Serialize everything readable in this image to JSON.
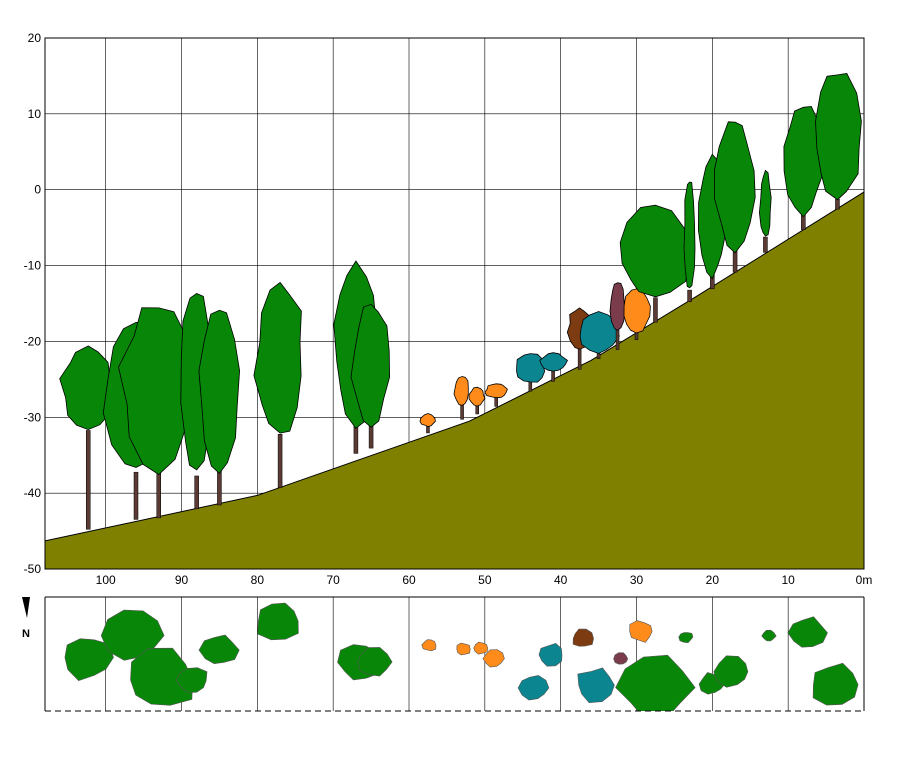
{
  "chart_data": {
    "type": "profile",
    "x_axis": {
      "ticks": [
        "100",
        "90",
        "80",
        "70",
        "60",
        "50",
        "40",
        "30",
        "20",
        "10",
        "0m"
      ],
      "range": [
        108,
        0
      ]
    },
    "y_axis": {
      "ticks": [
        "20",
        "10",
        "0",
        "-10",
        "-20",
        "-30",
        "-40",
        "-50"
      ],
      "range": [
        -50,
        20
      ]
    },
    "grid": true,
    "north_label": "N",
    "colors": {
      "terrain": "#808000",
      "green": "#078607",
      "teal": "#0B8590",
      "orange": "#FF8C1A",
      "brown": "#7D3B12",
      "maroon": "#7A3B4A",
      "trunk": "#5A3A32"
    },
    "terrain_profile": [
      [
        108,
        -46.3
      ],
      [
        80,
        -40.3
      ],
      [
        52,
        -30.5
      ],
      [
        36,
        -22.5
      ],
      [
        22,
        -14
      ],
      [
        0,
        -0.3
      ]
    ],
    "trees": [
      {
        "x": 102.3,
        "base": -44.5,
        "top": -20.5,
        "crown_base": -32,
        "w": 7,
        "color": "green"
      },
      {
        "x": 96.0,
        "base": -43.2,
        "top": -17,
        "crown_base": -37.5,
        "w": 8,
        "color": "green"
      },
      {
        "x": 93.0,
        "base": -43,
        "top": -14.5,
        "crown_base": -37,
        "w": 10,
        "color": "green"
      },
      {
        "x": 88.0,
        "base": -41.8,
        "top": -12.5,
        "crown_base": -38,
        "w": 4.5,
        "color": "green"
      },
      {
        "x": 85.0,
        "base": -41.3,
        "top": -15.5,
        "crown_base": -37,
        "w": 5,
        "color": "green"
      },
      {
        "x": 77.0,
        "base": -39,
        "top": -12,
        "crown_base": -32.5,
        "w": 6.5,
        "color": "green"
      },
      {
        "x": 67.0,
        "base": -34.5,
        "top": -9.5,
        "crown_base": -31,
        "w": 6,
        "color": "green"
      },
      {
        "x": 65.0,
        "base": -33.8,
        "top": -15,
        "crown_base": -31,
        "w": 5,
        "color": "green"
      },
      {
        "x": 57.5,
        "base": -31.8,
        "top": -29.5,
        "crown_base": -31.2,
        "w": 2,
        "color": "orange"
      },
      {
        "x": 53.0,
        "base": -30,
        "top": -24.5,
        "crown_base": -28.5,
        "w": 2,
        "color": "orange"
      },
      {
        "x": 51.0,
        "base": -29.3,
        "top": -26,
        "crown_base": -28.5,
        "w": 2,
        "color": "orange"
      },
      {
        "x": 48.5,
        "base": -28.3,
        "top": -25.5,
        "crown_base": -27.5,
        "w": 3,
        "color": "orange"
      },
      {
        "x": 44.0,
        "base": -26.3,
        "top": -21.5,
        "crown_base": -25.5,
        "w": 4,
        "color": "teal"
      },
      {
        "x": 41.0,
        "base": -25,
        "top": -21.5,
        "crown_base": -24,
        "w": 3.5,
        "color": "teal"
      },
      {
        "x": 37.5,
        "base": -23.4,
        "top": -15.5,
        "crown_base": -21,
        "w": 3,
        "color": "brown"
      },
      {
        "x": 35.0,
        "base": -22,
        "top": -16,
        "crown_base": -21.5,
        "w": 5.5,
        "color": "teal"
      },
      {
        "x": 32.5,
        "base": -20.8,
        "top": -12,
        "crown_base": -18.5,
        "w": 2,
        "color": "maroon"
      },
      {
        "x": 30.0,
        "base": -19.5,
        "top": -13,
        "crown_base": -19,
        "w": 3.5,
        "color": "orange"
      },
      {
        "x": 27.5,
        "base": -17.2,
        "top": -2,
        "crown_base": -14.5,
        "w": 10,
        "color": "green"
      },
      {
        "x": 23.0,
        "base": -14.5,
        "top": 1.5,
        "crown_base": -13.5,
        "w": 1.5,
        "color": "green"
      },
      {
        "x": 20.0,
        "base": -12.8,
        "top": 4.5,
        "crown_base": -11.5,
        "w": 3.5,
        "color": "green"
      },
      {
        "x": 17.0,
        "base": -10.6,
        "top": 9.5,
        "crown_base": -8,
        "w": 5,
        "color": "green"
      },
      {
        "x": 13.0,
        "base": -8,
        "top": 2.5,
        "crown_base": -6.5,
        "w": 1.5,
        "color": "green"
      },
      {
        "x": 8.0,
        "base": -5,
        "top": 11.5,
        "crown_base": -3.5,
        "w": 5,
        "color": "green"
      },
      {
        "x": 3.5,
        "base": -2.3,
        "top": 16,
        "crown_base": -1.5,
        "w": 6.5,
        "color": "green"
      }
    ]
  }
}
